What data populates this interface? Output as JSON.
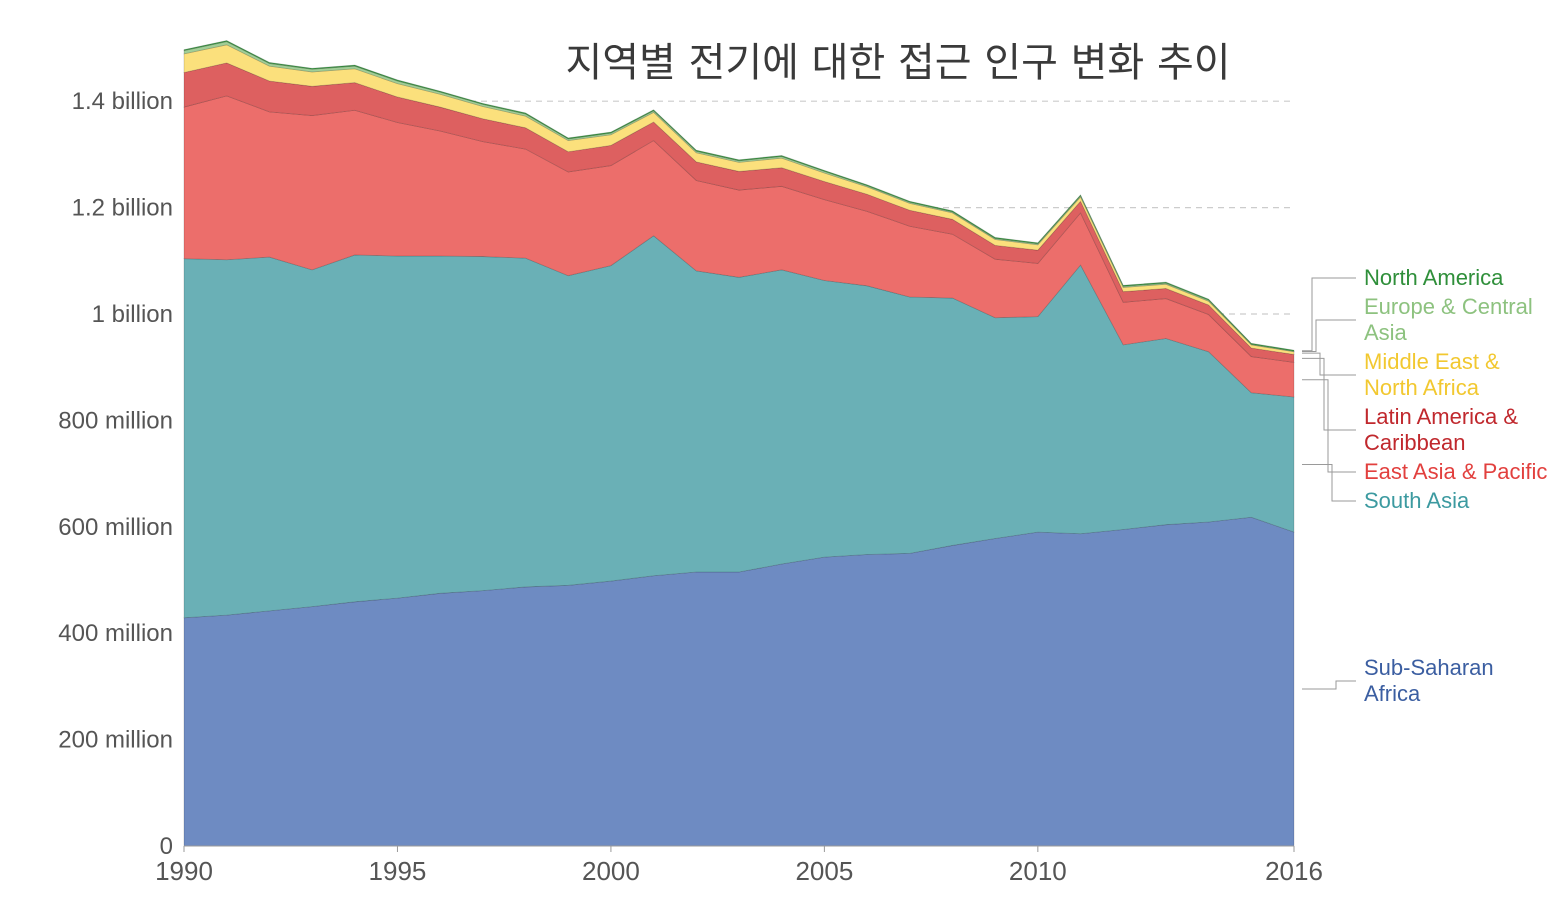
{
  "chart_data": {
    "type": "area",
    "stacked": true,
    "title": "지역별 전기에 대한 접근 인구 변화 추이",
    "xlabel": "",
    "ylabel": "",
    "xlim": [
      1990,
      2016
    ],
    "ylim": [
      0,
      1500000000
    ],
    "grid": true,
    "legend": "right",
    "x_tick_values": [
      1990,
      1995,
      2000,
      2005,
      2010,
      2016
    ],
    "x_tick_labels": [
      "1990",
      "1995",
      "2000",
      "2005",
      "2010",
      "2016"
    ],
    "y_tick_values": [
      0,
      200000000,
      400000000,
      600000000,
      800000000,
      1000000000,
      1200000000,
      1400000000
    ],
    "y_tick_labels": [
      "0",
      "200 million",
      "400 million",
      "600 million",
      "800 million",
      "1 billion",
      "1.2 billion",
      "1.4 billion"
    ],
    "x": [
      1990,
      1991,
      1992,
      1993,
      1994,
      1995,
      1996,
      1997,
      1998,
      1999,
      2000,
      2001,
      2002,
      2003,
      2004,
      2005,
      2006,
      2007,
      2008,
      2009,
      2010,
      2011,
      2012,
      2013,
      2014,
      2015,
      2016
    ],
    "series": [
      {
        "name": "Sub-Saharan Africa",
        "legend_label": [
          "Sub-Saharan",
          "Africa"
        ],
        "color": "#6e8bc2",
        "label_color": "#3b5ea1",
        "values": [
          429000000,
          434000000,
          442000000,
          450000000,
          459000000,
          466000000,
          475000000,
          480000000,
          487000000,
          490000000,
          498000000,
          508000000,
          515000000,
          515000000,
          530000000,
          543000000,
          548000000,
          550000000,
          565000000,
          578000000,
          590000000,
          587000000,
          595000000,
          604000000,
          609000000,
          618000000,
          590000000
        ]
      },
      {
        "name": "South Asia",
        "legend_label": [
          "South Asia"
        ],
        "color": "#6ab0b6",
        "label_color": "#3c9aa0",
        "values": [
          675000000,
          668000000,
          665000000,
          633000000,
          652000000,
          643000000,
          634000000,
          628000000,
          618000000,
          582000000,
          593000000,
          639000000,
          566000000,
          554000000,
          553000000,
          520000000,
          505000000,
          482000000,
          465000000,
          415000000,
          405000000,
          505000000,
          347000000,
          350000000,
          320000000,
          234000000,
          254000000
        ]
      },
      {
        "name": "East Asia & Pacific",
        "legend_label": [
          "East Asia & Pacific"
        ],
        "color": "#ec6e6b",
        "label_color": "#e2403e",
        "values": [
          285000000,
          308000000,
          273000000,
          290000000,
          272000000,
          251000000,
          235000000,
          216000000,
          205000000,
          195000000,
          188000000,
          179000000,
          170000000,
          164000000,
          157000000,
          152000000,
          140000000,
          133000000,
          120000000,
          110000000,
          100000000,
          98000000,
          80000000,
          75000000,
          70000000,
          68000000,
          65000000
        ]
      },
      {
        "name": "Latin America & Caribbean",
        "legend_label": [
          "Latin America &",
          "Caribbean"
        ],
        "color": "#dd6060",
        "label_color": "#c0282d",
        "values": [
          65000000,
          62000000,
          58000000,
          55000000,
          52000000,
          48000000,
          45000000,
          43000000,
          40000000,
          38000000,
          38000000,
          35000000,
          35000000,
          35000000,
          35000000,
          34000000,
          32000000,
          30000000,
          28000000,
          26000000,
          25000000,
          22000000,
          20000000,
          19000000,
          18000000,
          16000000,
          15000000
        ]
      },
      {
        "name": "Middle East & North Africa",
        "legend_label": [
          "Middle East &",
          "North Africa"
        ],
        "color": "#fbe07c",
        "label_color": "#f2c830",
        "values": [
          35000000,
          34000000,
          28000000,
          27000000,
          26000000,
          25000000,
          24000000,
          23000000,
          22000000,
          21000000,
          20000000,
          18000000,
          17000000,
          17000000,
          18000000,
          16000000,
          14000000,
          13000000,
          12000000,
          11000000,
          10000000,
          8000000,
          8000000,
          8000000,
          7000000,
          6000000,
          5000000
        ]
      },
      {
        "name": "Europe & Central Asia",
        "legend_label": [
          "Europe & Central",
          "Asia"
        ],
        "color": "#a0cf96",
        "label_color": "#8dc27f",
        "values": [
          6000000,
          6000000,
          5000000,
          5000000,
          5000000,
          5000000,
          4000000,
          4000000,
          4000000,
          3000000,
          3000000,
          3000000,
          3000000,
          3000000,
          3000000,
          3000000,
          2000000,
          2000000,
          2000000,
          2000000,
          2000000,
          2000000,
          2000000,
          2000000,
          2000000,
          1000000,
          1000000
        ]
      },
      {
        "name": "North America",
        "legend_label": [
          "North America"
        ],
        "color": "#3e9e47",
        "label_color": "#2f8f3a",
        "values": [
          2000000,
          2000000,
          2000000,
          2000000,
          2000000,
          2000000,
          2000000,
          2000000,
          2000000,
          2000000,
          2000000,
          2000000,
          2000000,
          2000000,
          2000000,
          2000000,
          2000000,
          2000000,
          2000000,
          2000000,
          2000000,
          2000000,
          2000000,
          2000000,
          2000000,
          2000000,
          2000000
        ]
      }
    ]
  }
}
